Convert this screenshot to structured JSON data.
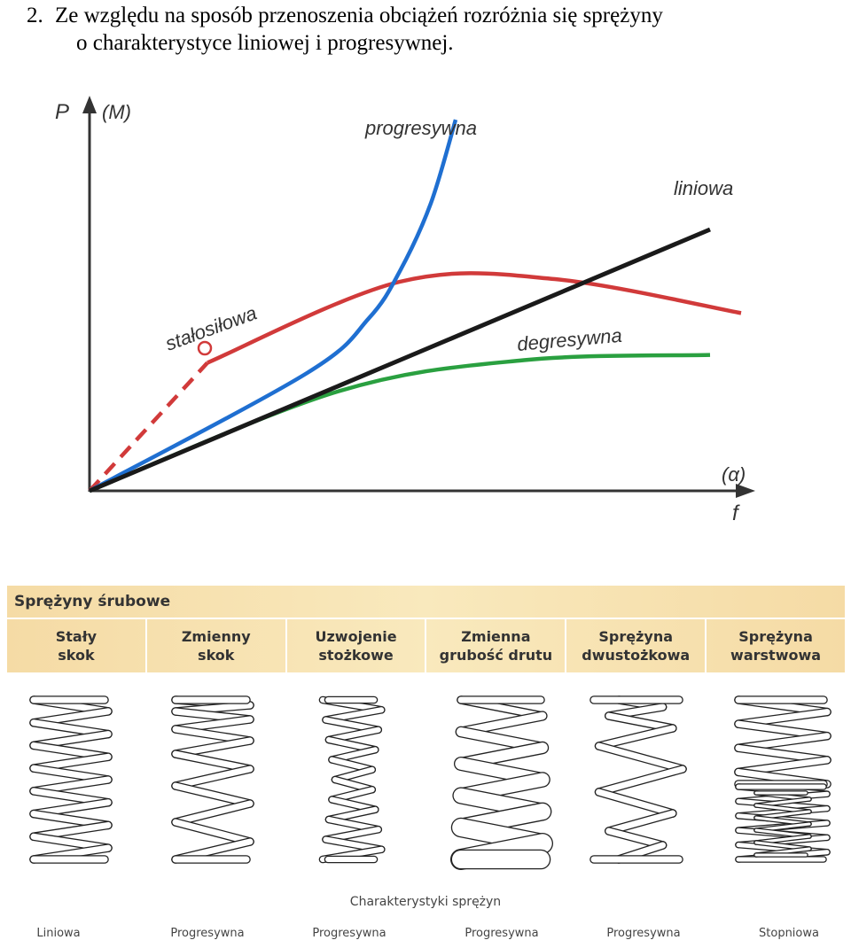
{
  "heading": {
    "number": "2.",
    "line1": "Ze względu na sposób przenoszenia obciążeń rozróżnia się sprężyny",
    "line2": "o charakterystyce liniowej i progresywnej."
  },
  "chart_data": {
    "type": "line",
    "ylabel": "P",
    "ylabel_alt": "(M)",
    "xlabel": "f",
    "xlabel_alt": "(α)",
    "grid": false,
    "series": [
      {
        "name": "liniowa",
        "color": "#1a1a1a",
        "x": [
          0,
          100
        ],
        "y": [
          0,
          100
        ]
      },
      {
        "name": "progresywna",
        "color": "#1f6fd1",
        "x": [
          0,
          35,
          45,
          50,
          55,
          59
        ],
        "y": [
          0,
          45,
          66,
          84,
          110,
          142
        ]
      },
      {
        "name": "degresywna",
        "color": "#2aa040",
        "x": [
          0,
          40,
          70,
          100
        ],
        "y": [
          0,
          38,
          50,
          52
        ]
      },
      {
        "name": "stałosiłowa",
        "color": "#d13a3a",
        "x": [
          0,
          19,
          50,
          75,
          105
        ],
        "y": [
          0,
          49,
          80,
          81,
          68
        ]
      }
    ],
    "annotations": [
      "progresywna",
      "liniowa",
      "stałosiłowa",
      "degresywna"
    ]
  },
  "band": {
    "title": "Sprężyny śrubowe",
    "columns": [
      "Stały\nskok",
      "Zmienny\nskok",
      "Uzwojenie\nstożkowe",
      "Zmienna\ngrubość drutu",
      "Sprężyna\ndwustożkowa",
      "Sprężyna\nwarstwowa"
    ]
  },
  "caption": "Charakterystyki sprężyn",
  "characteristics": [
    "Liniowa",
    "Progresywna",
    "Progresywna",
    "Progresywna",
    "Progresywna",
    "Stopniowa"
  ],
  "icons": {
    "spring": "helical-spring-icon"
  }
}
